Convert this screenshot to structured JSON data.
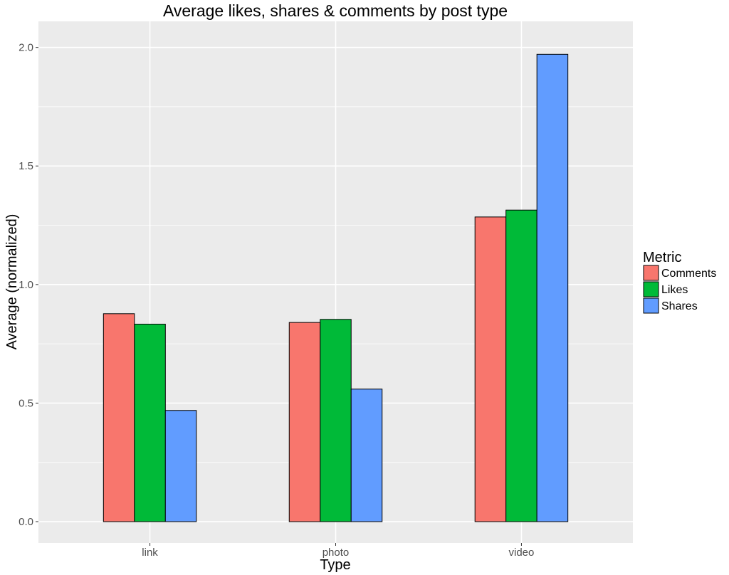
{
  "chart_data": {
    "type": "bar",
    "title": "Average likes, shares & comments by post type",
    "xlabel": "Type",
    "ylabel": "Average (normalized)",
    "categories": [
      "link",
      "photo",
      "video"
    ],
    "series": [
      {
        "name": "Comments",
        "color": "#F8766D",
        "values": [
          0.877,
          0.84,
          1.285
        ]
      },
      {
        "name": "Likes",
        "color": "#00BA38",
        "values": [
          0.833,
          0.853,
          1.314
        ]
      },
      {
        "name": "Shares",
        "color": "#619CFF",
        "values": [
          0.469,
          0.559,
          1.971
        ]
      }
    ],
    "ylim": [
      -0.09,
      2.11
    ],
    "yticks": [
      0.0,
      0.5,
      1.0,
      1.5,
      2.0
    ],
    "ytick_labels": [
      "0.0",
      "0.5",
      "1.0",
      "1.5",
      "2.0"
    ],
    "grid": true,
    "legend": {
      "title": "Metric",
      "position": "right"
    },
    "colors": {
      "panel": "#EBEBEB",
      "grid": "#FFFFFF",
      "bar_outline": "#000000"
    }
  }
}
